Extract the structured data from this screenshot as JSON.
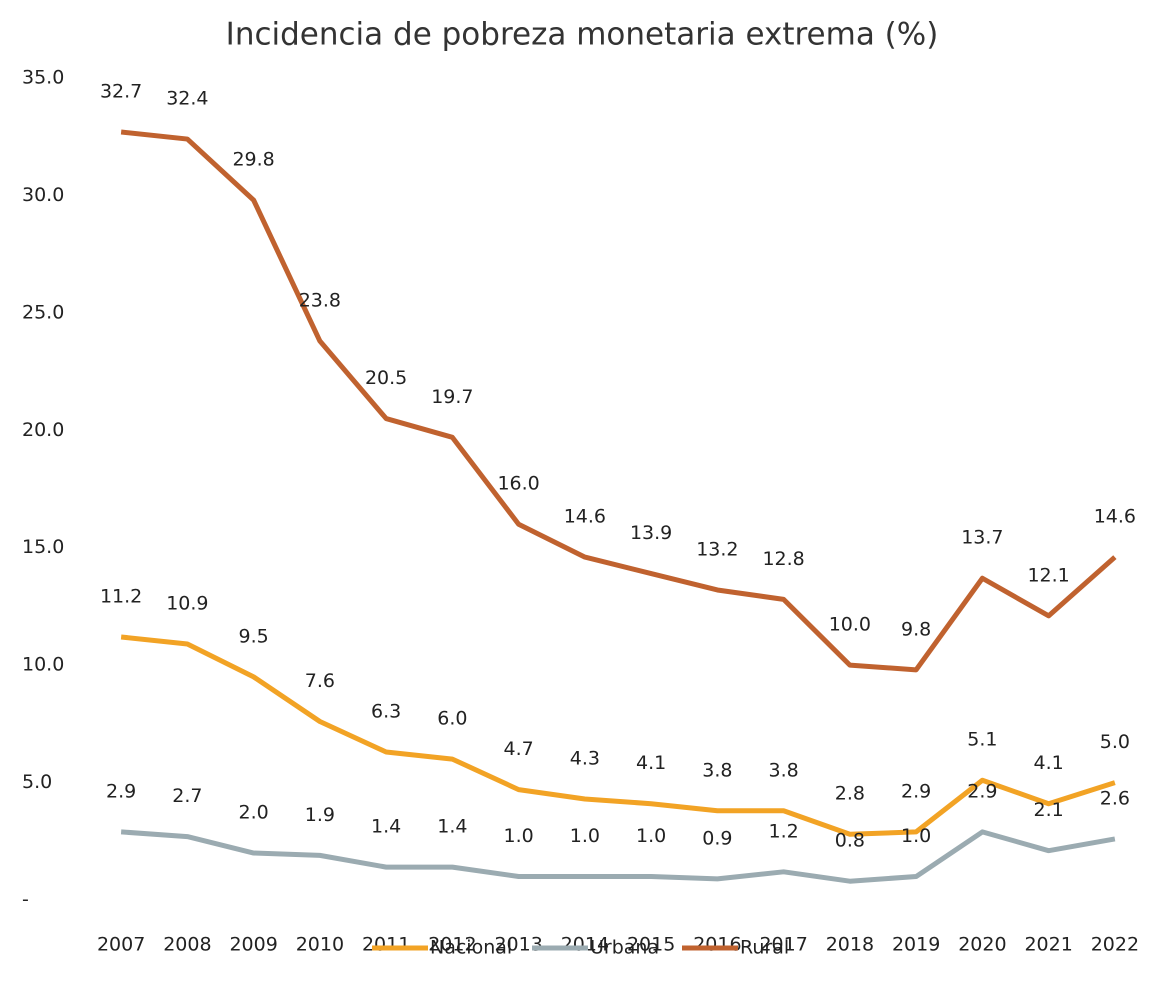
{
  "chart_data": {
    "type": "line",
    "title": "Incidencia de pobreza monetaria extrema (%)",
    "categories": [
      "2007",
      "2008",
      "2009",
      "2010",
      "2011",
      "2012",
      "2013",
      "2014",
      "2015",
      "2016",
      "2017",
      "2018",
      "2019",
      "2020",
      "2021",
      "2022"
    ],
    "series": [
      {
        "name": "Nacional",
        "color": "#f2a325",
        "values": [
          11.2,
          10.9,
          9.5,
          7.6,
          6.3,
          6.0,
          4.7,
          4.3,
          4.1,
          3.8,
          3.8,
          2.8,
          2.9,
          5.1,
          4.1,
          5.0
        ],
        "value_labels": [
          "11.2",
          "10.9",
          "9.5",
          "7.6",
          "6.3",
          "6.0",
          "4.7",
          "4.3",
          "4.1",
          "3.8",
          "3.8",
          "2.8",
          "2.9",
          "5.1",
          "4.1",
          "5.0"
        ]
      },
      {
        "name": "Urbana",
        "color": "#9babb1",
        "values": [
          2.9,
          2.7,
          2.0,
          1.9,
          1.4,
          1.4,
          1.0,
          1.0,
          1.0,
          0.9,
          1.2,
          0.8,
          1.0,
          2.9,
          2.1,
          2.6
        ],
        "value_labels": [
          "2.9",
          "2.7",
          "2.0",
          "1.9",
          "1.4",
          "1.4",
          "1.0",
          "1.0",
          "1.0",
          "0.9",
          "1.2",
          "0.8",
          "1.0",
          "2.9",
          "2.1",
          "2.6"
        ]
      },
      {
        "name": "Rural",
        "color": "#c0622f",
        "values": [
          32.7,
          32.4,
          29.8,
          23.8,
          20.5,
          19.7,
          16.0,
          14.6,
          13.9,
          13.2,
          12.8,
          10.0,
          9.8,
          13.7,
          12.1,
          14.6
        ],
        "value_labels": [
          "32.7",
          "32.4",
          "29.8",
          "23.8",
          "20.5",
          "19.7",
          "16.0",
          "14.6",
          "13.9",
          "13.2",
          "12.8",
          "10.0",
          "9.8",
          "13.7",
          "12.1",
          "14.6"
        ]
      }
    ],
    "ylim": [
      0,
      35
    ],
    "yticks": [
      {
        "value": 0,
        "label": "-"
      },
      {
        "value": 5,
        "label": "5.0"
      },
      {
        "value": 10,
        "label": "10.0"
      },
      {
        "value": 15,
        "label": "15.0"
      },
      {
        "value": 20,
        "label": "20.0"
      },
      {
        "value": 25,
        "label": "25.0"
      },
      {
        "value": 30,
        "label": "30.0"
      },
      {
        "value": 35,
        "label": "35.0"
      }
    ],
    "legend": "bottom"
  }
}
